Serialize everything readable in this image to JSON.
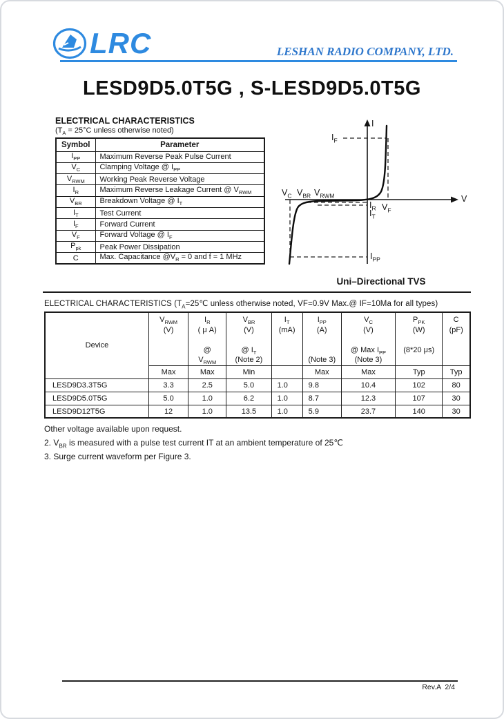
{
  "header": {
    "logo_text": "LRC",
    "company": "LESHAN RADIO COMPANY, LTD."
  },
  "title": "LESD9D5.0T5G , S-LESD9D5.0T5G",
  "colors": {
    "brand_blue": "#2e8ae0",
    "text": "#151515"
  },
  "table1": {
    "heading": "ELECTRICAL CHARACTERISTICS",
    "condition": "(T~A~ = 25°C unless otherwise noted)",
    "col_symbol": "Symbol",
    "col_parameter": "Parameter",
    "rows": [
      {
        "symbol": "I~PP~",
        "parameter": "Maximum Reverse Peak Pulse Current"
      },
      {
        "symbol": "V~C~",
        "parameter": "Clamping Voltage @ I~PP~"
      },
      {
        "symbol": "V~RWM~",
        "parameter": "Working Peak Reverse Voltage"
      },
      {
        "symbol": "I~R~",
        "parameter": "Maximum Reverse Leakage Current @ V~RWM~"
      },
      {
        "symbol": "V~BR~",
        "parameter": "Breakdown Voltage @ I~T~"
      },
      {
        "symbol": "I~T~",
        "parameter": "Test Current"
      },
      {
        "symbol": "I~F~",
        "parameter": "Forward Current"
      },
      {
        "symbol": "V~F~",
        "parameter": "Forward Voltage @ I~F~"
      },
      {
        "symbol": "P~pk~",
        "parameter": "Peak Power Dissipation"
      },
      {
        "symbol": "C",
        "parameter": "Max. Capacitance @V~R~ = 0 and f = 1 MHz"
      }
    ]
  },
  "diagram": {
    "caption": "Uni–Directional TVS",
    "labels": {
      "i_axis": "I",
      "v_axis": "V",
      "if": "I~F~",
      "vf": "V~F~",
      "ir": "I~R~",
      "it": "I~T~",
      "ipp": "I~PP~",
      "vc": "V~C~",
      "vbr": "V~BR~",
      "vrwm": "V~RWM~"
    }
  },
  "table2": {
    "heading": "ELECTRICAL CHARACTERISTICS (T~A~=25℃ unless otherwise noted, VF=0.9V Max.@ IF=10Ma for all types)",
    "device_header": "Device",
    "columns": [
      {
        "lines": [
          "V~RWM~",
          "(V)",
          "",
          "",
          ""
        ],
        "limit": "Max"
      },
      {
        "lines": [
          "I~R~",
          "( μ A)",
          "",
          "@",
          "V~RWM~"
        ],
        "limit": "Max"
      },
      {
        "lines": [
          "V~BR~",
          "(V)",
          "",
          "@ I~T~",
          "(Note 2)"
        ],
        "limit": "Min"
      },
      {
        "lines": [
          "I~T~",
          "(mA)",
          "",
          "",
          ""
        ],
        "limit": ""
      },
      {
        "lines": [
          "I~PP~",
          "(A)",
          "",
          "",
          "(Note 3)"
        ],
        "limit": "Max"
      },
      {
        "lines": [
          "V~C~",
          "(V)",
          "",
          "@ Max I~PP~",
          "(Note 3)"
        ],
        "limit": "Max"
      },
      {
        "lines": [
          "P~PK~",
          "(W)",
          "",
          "(8*20 μs)",
          ""
        ],
        "limit": "Typ"
      },
      {
        "lines": [
          "C",
          "(pF)",
          "",
          "",
          ""
        ],
        "limit": "Typ"
      }
    ],
    "rows": [
      {
        "device": "LESD9D3.3T5G",
        "values": [
          "3.3",
          "2.5",
          "5.0",
          "1.0",
          "9.8",
          "10.4",
          "102",
          "80"
        ]
      },
      {
        "device": "LESD9D5.0T5G",
        "values": [
          "5.0",
          "1.0",
          "6.2",
          "1.0",
          "8.7",
          "12.3",
          "107",
          "30"
        ]
      },
      {
        "device": "LESD9D12T5G",
        "values": [
          "12",
          "1.0",
          "13.5",
          "1.0",
          "5.9",
          "23.7",
          "140",
          "30"
        ]
      }
    ]
  },
  "notes": [
    "Other voltage available upon request.",
    "2. V~BR~ is measured with a pulse test current IT at an ambient temperature of 25℃",
    "3. Surge current waveform per Figure 3."
  ],
  "footer": {
    "rev": "Rev.A  2/4"
  }
}
